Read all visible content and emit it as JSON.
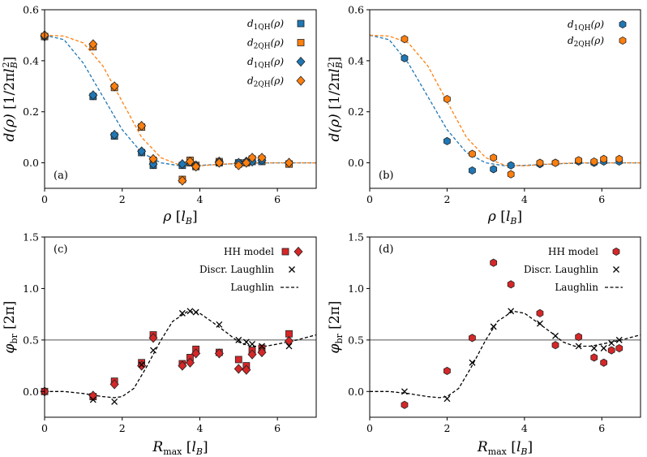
{
  "colors": {
    "blue": "#1f77b4",
    "orange": "#ff7f0e",
    "red": "#d62728",
    "edge": "#222222"
  },
  "chart_data": [
    {
      "panel": "(a)",
      "type": "scatter",
      "xlabel": "ρ [l_B]",
      "ylabel": "d(ρ) [1/2πl_B²]",
      "xlim": [
        0,
        7
      ],
      "ylim": [
        -0.1,
        0.6
      ],
      "xticks": [
        0,
        2,
        4,
        6
      ],
      "yticks": [
        0.0,
        0.2,
        0.4,
        0.6
      ],
      "hline": null,
      "legend": [
        {
          "label": "d1QH(ρ)",
          "marker": "square",
          "color": "blue"
        },
        {
          "label": "d2QH(ρ)",
          "marker": "square",
          "color": "orange"
        },
        {
          "label": "d1QH(ρ)",
          "marker": "diamond",
          "color": "blue"
        },
        {
          "label": "d2QH(ρ)",
          "marker": "diamond",
          "color": "orange"
        }
      ],
      "curves": [
        {
          "name": "d1QH fit",
          "color": "blue",
          "x": [
            0,
            0.5,
            1,
            1.5,
            2,
            2.5,
            3,
            3.5,
            4,
            4.5,
            5,
            5.5,
            6,
            6.5,
            7
          ],
          "y": [
            0.5,
            0.483,
            0.39,
            0.26,
            0.13,
            0.04,
            0.0,
            -0.012,
            -0.01,
            -0.006,
            -0.003,
            -0.001,
            0,
            0,
            0
          ]
        },
        {
          "name": "d2QH fit",
          "color": "orange",
          "x": [
            0,
            0.5,
            1,
            1.5,
            2,
            2.5,
            3,
            3.5,
            4,
            4.5,
            5,
            5.5,
            6,
            6.5,
            7
          ],
          "y": [
            0.5,
            0.497,
            0.47,
            0.38,
            0.24,
            0.1,
            0.02,
            -0.01,
            -0.012,
            -0.006,
            -0.002,
            0,
            0,
            0,
            0
          ]
        }
      ],
      "series": [
        {
          "name": "d1QH(ρ)",
          "marker": "square",
          "color": "blue",
          "x": [
            0,
            1.25,
            1.8,
            2.5,
            2.8,
            3.55,
            3.75,
            3.9,
            4.5,
            5.0,
            5.2,
            5.35,
            5.6,
            6.3
          ],
          "y": [
            0.495,
            0.26,
            0.105,
            0.04,
            -0.01,
            -0.01,
            0.0,
            -0.015,
            0.0,
            0.0,
            0.0,
            0.005,
            0.005,
            -0.005
          ]
        },
        {
          "name": "d2QH(ρ)",
          "marker": "square",
          "color": "orange",
          "x": [
            0,
            1.25,
            1.8,
            2.5,
            2.8,
            3.55,
            3.75,
            3.9,
            4.5,
            5.0,
            5.2,
            5.35,
            5.6,
            6.3
          ],
          "y": [
            0.495,
            0.455,
            0.295,
            0.14,
            0.01,
            -0.065,
            0.01,
            -0.01,
            0.005,
            -0.005,
            0.0,
            0.015,
            0.015,
            -0.005
          ]
        },
        {
          "name": "d1QH(ρ)",
          "marker": "diamond",
          "color": "blue",
          "x": [
            0,
            1.25,
            1.8,
            2.5,
            2.8,
            3.55,
            3.75,
            3.9,
            4.5,
            5.0,
            5.2,
            5.35,
            5.6,
            6.3
          ],
          "y": [
            0.495,
            0.265,
            0.11,
            0.045,
            -0.005,
            -0.005,
            0.005,
            -0.01,
            0.005,
            0.0,
            0.005,
            0.005,
            0.01,
            0.0
          ]
        },
        {
          "name": "d2QH(ρ)",
          "marker": "diamond",
          "color": "orange",
          "x": [
            0,
            1.25,
            1.8,
            2.5,
            2.8,
            3.55,
            3.75,
            3.9,
            4.5,
            5.0,
            5.2,
            5.35,
            5.6,
            6.3
          ],
          "y": [
            0.5,
            0.465,
            0.3,
            0.145,
            0.015,
            -0.07,
            0.005,
            -0.015,
            0.0,
            -0.01,
            0.0,
            0.02,
            0.02,
            0.0
          ]
        }
      ]
    },
    {
      "panel": "(b)",
      "type": "scatter",
      "xlabel": "ρ [l_B]",
      "ylabel": "d(ρ) [1/2πl_B²]",
      "xlim": [
        0,
        7
      ],
      "ylim": [
        -0.1,
        0.6
      ],
      "xticks": [
        0,
        2,
        4,
        6
      ],
      "yticks": [
        0.0,
        0.2,
        0.4,
        0.6
      ],
      "hline": null,
      "legend": [
        {
          "label": "d1QH(ρ)",
          "marker": "hexagon",
          "color": "blue"
        },
        {
          "label": "d2QH(ρ)",
          "marker": "hexagon",
          "color": "orange"
        }
      ],
      "curves": [
        {
          "name": "d1QH fit",
          "color": "blue",
          "x": [
            0,
            0.5,
            1,
            1.5,
            2,
            2.5,
            3,
            3.5,
            4,
            4.5,
            5,
            5.5,
            6,
            6.5,
            7
          ],
          "y": [
            0.5,
            0.483,
            0.39,
            0.26,
            0.13,
            0.04,
            0.0,
            -0.012,
            -0.01,
            -0.006,
            -0.003,
            -0.001,
            0,
            0,
            0
          ]
        },
        {
          "name": "d2QH fit",
          "color": "orange",
          "x": [
            0,
            0.5,
            1,
            1.5,
            2,
            2.5,
            3,
            3.5,
            4,
            4.5,
            5,
            5.5,
            6,
            6.5,
            7
          ],
          "y": [
            0.5,
            0.497,
            0.47,
            0.38,
            0.24,
            0.1,
            0.02,
            -0.01,
            -0.012,
            -0.006,
            -0.002,
            0,
            0,
            0,
            0
          ]
        }
      ],
      "series": [
        {
          "name": "d1QH(ρ)",
          "marker": "hexagon",
          "color": "blue",
          "x": [
            0.9,
            2.0,
            2.65,
            3.2,
            3.65,
            4.4,
            4.8,
            5.4,
            5.8,
            6.05,
            6.45
          ],
          "y": [
            0.41,
            0.085,
            -0.03,
            -0.025,
            -0.01,
            -0.005,
            0.0,
            0.005,
            0.0,
            0.005,
            0.005
          ]
        },
        {
          "name": "d2QH(ρ)",
          "marker": "hexagon",
          "color": "orange",
          "x": [
            0.9,
            2.0,
            2.65,
            3.2,
            3.65,
            4.4,
            4.8,
            5.4,
            5.8,
            6.05,
            6.45
          ],
          "y": [
            0.485,
            0.25,
            0.035,
            0.02,
            -0.045,
            0.0,
            0.0,
            0.01,
            0.005,
            0.015,
            0.015
          ]
        }
      ]
    },
    {
      "panel": "(c)",
      "type": "scatter",
      "xlabel": "R_max [l_B]",
      "ylabel": "φ_br [2π]",
      "xlim": [
        0,
        7
      ],
      "ylim": [
        -0.25,
        1.5
      ],
      "xticks": [
        0,
        2,
        4,
        6
      ],
      "yticks": [
        0.0,
        0.5,
        1.0,
        1.5
      ],
      "hline": 0.5,
      "legend": [
        {
          "label": "HH model",
          "marker": "square+diamond",
          "color": "red"
        },
        {
          "label": "Discr. Laughlin",
          "marker": "cross",
          "color": "black"
        },
        {
          "label": "Laughlin",
          "marker": "dashed-line",
          "color": "black"
        }
      ],
      "curves": [
        {
          "name": "Laughlin",
          "color": "black",
          "x": [
            0,
            0.5,
            1,
            1.5,
            1.8,
            2,
            2.3,
            2.6,
            3,
            3.3,
            3.7,
            4,
            4.3,
            4.7,
            5,
            5.3,
            5.7,
            6,
            6.5,
            7
          ],
          "y": [
            0,
            0,
            -0.02,
            -0.05,
            -0.06,
            -0.05,
            0.03,
            0.22,
            0.5,
            0.68,
            0.78,
            0.76,
            0.68,
            0.57,
            0.48,
            0.44,
            0.44,
            0.46,
            0.5,
            0.55
          ]
        }
      ],
      "series": [
        {
          "name": "HH model (squares)",
          "marker": "square",
          "color": "red",
          "x": [
            0,
            1.25,
            1.8,
            2.5,
            2.8,
            3.55,
            3.75,
            3.9,
            4.5,
            5.0,
            5.2,
            5.35,
            5.6,
            6.3
          ],
          "y": [
            0.0,
            -0.05,
            0.1,
            0.28,
            0.55,
            0.27,
            0.33,
            0.41,
            0.38,
            0.31,
            0.25,
            0.4,
            0.42,
            0.56
          ]
        },
        {
          "name": "HH model (diamonds)",
          "marker": "diamond",
          "color": "red",
          "x": [
            0,
            1.25,
            1.8,
            2.5,
            2.8,
            3.55,
            3.75,
            3.9,
            4.5,
            5.0,
            5.2,
            5.35,
            5.6,
            6.3
          ],
          "y": [
            0.0,
            -0.04,
            0.07,
            0.25,
            0.52,
            0.25,
            0.28,
            0.37,
            0.37,
            0.22,
            0.21,
            0.36,
            0.38,
            0.49
          ]
        },
        {
          "name": "Discr. Laughlin",
          "marker": "cross",
          "color": "black",
          "x": [
            1.25,
            1.8,
            2.5,
            2.8,
            3.55,
            3.75,
            3.9,
            4.5,
            5.0,
            5.2,
            5.35,
            5.6,
            6.3
          ],
          "y": [
            -0.08,
            -0.1,
            0.26,
            0.4,
            0.76,
            0.78,
            0.77,
            0.65,
            0.5,
            0.48,
            0.46,
            0.44,
            0.44
          ]
        }
      ]
    },
    {
      "panel": "(d)",
      "type": "scatter",
      "xlabel": "R_max [l_B]",
      "ylabel": "φ_br [2π]",
      "xlim": [
        0,
        7
      ],
      "ylim": [
        -0.25,
        1.5
      ],
      "xticks": [
        0,
        2,
        4,
        6
      ],
      "yticks": [
        0.0,
        0.5,
        1.0,
        1.5
      ],
      "hline": 0.5,
      "legend": [
        {
          "label": "HH model",
          "marker": "hexagon",
          "color": "red"
        },
        {
          "label": "Discr. Laughlin",
          "marker": "cross",
          "color": "black"
        },
        {
          "label": "Laughlin",
          "marker": "dashed-line",
          "color": "black"
        }
      ],
      "curves": [
        {
          "name": "Laughlin",
          "color": "black",
          "x": [
            0,
            0.5,
            1,
            1.5,
            1.8,
            2,
            2.3,
            2.6,
            3,
            3.3,
            3.7,
            4,
            4.3,
            4.7,
            5,
            5.3,
            5.7,
            6,
            6.5,
            7
          ],
          "y": [
            0,
            0,
            -0.02,
            -0.05,
            -0.06,
            -0.05,
            0.03,
            0.22,
            0.5,
            0.68,
            0.78,
            0.76,
            0.68,
            0.57,
            0.48,
            0.44,
            0.44,
            0.46,
            0.5,
            0.55
          ]
        }
      ],
      "series": [
        {
          "name": "HH model",
          "marker": "hexagon",
          "color": "red",
          "x": [
            0.9,
            2.0,
            2.65,
            3.2,
            3.65,
            4.4,
            4.8,
            5.4,
            5.8,
            6.05,
            6.25,
            6.45
          ],
          "y": [
            -0.13,
            0.2,
            0.52,
            1.25,
            1.04,
            0.76,
            0.45,
            0.53,
            0.33,
            0.28,
            0.4,
            0.42
          ]
        },
        {
          "name": "Discr. Laughlin",
          "marker": "cross",
          "color": "black",
          "x": [
            0.9,
            2.0,
            2.65,
            3.2,
            3.65,
            4.4,
            4.8,
            5.4,
            5.8,
            6.05,
            6.25,
            6.45
          ],
          "y": [
            0.0,
            -0.07,
            0.28,
            0.63,
            0.78,
            0.66,
            0.54,
            0.44,
            0.42,
            0.42,
            0.47,
            0.5
          ]
        }
      ]
    }
  ]
}
